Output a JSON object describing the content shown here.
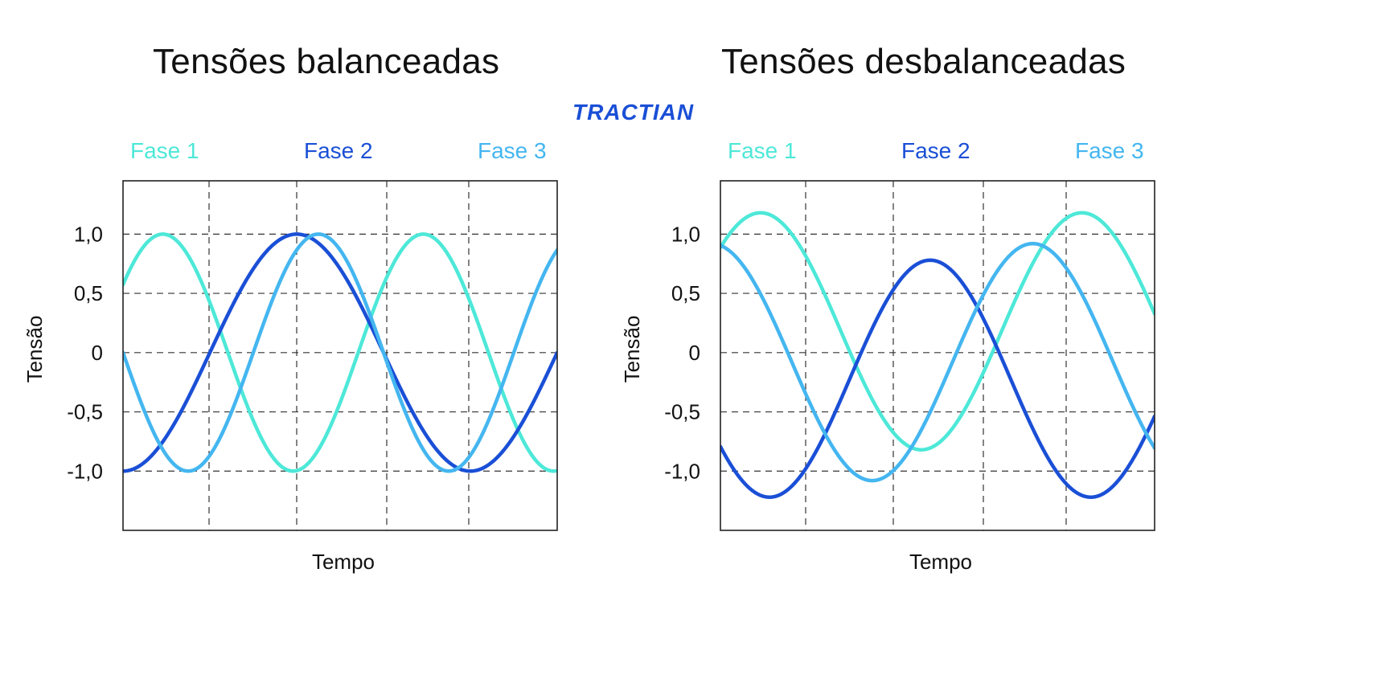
{
  "logo": {
    "text": "TRACTIAN",
    "color": "#1a4fd6"
  },
  "colors": {
    "fase1": "#4de8d8",
    "fase2": "#1a4fd6",
    "fase3": "#44b6f0",
    "grid": "#333333",
    "frame": "#222222"
  },
  "chart_data": [
    {
      "type": "line",
      "title": "Tensões balanceadas",
      "xlabel": "Tempo",
      "ylabel": "Tensão",
      "yticks": [
        1.0,
        0.5,
        0,
        -0.5,
        -1.0
      ],
      "ytick_labels": [
        "1,0",
        "0,5",
        "0",
        "-0,5",
        "-1,0"
      ],
      "ylim": [
        -1.5,
        1.45
      ],
      "xlim": [
        0,
        1
      ],
      "grid": true,
      "legend_position": "top",
      "series": [
        {
          "name": "Fase 1",
          "color": "#4de8d8",
          "amplitude": 1.0,
          "offset": 0.0,
          "period": 0.6,
          "phase_deg": 35
        },
        {
          "name": "Fase 2",
          "color": "#1a4fd6",
          "amplitude": 1.0,
          "offset": 0.0,
          "period": 0.8,
          "phase_deg": -90
        },
        {
          "name": "Fase 3",
          "color": "#44b6f0",
          "amplitude": 1.0,
          "offset": 0.0,
          "period": 0.6,
          "phase_deg": 180
        }
      ]
    },
    {
      "type": "line",
      "title": "Tensões desbalanceadas",
      "xlabel": "Tempo",
      "ylabel": "Tensão",
      "yticks": [
        1.0,
        0.5,
        0,
        -0.5,
        -1.0
      ],
      "ytick_labels": [
        "1,0",
        "0,5",
        "0",
        "-0,5",
        "-1,0"
      ],
      "ylim": [
        -1.5,
        1.45
      ],
      "xlim": [
        0,
        1
      ],
      "grid": true,
      "legend_position": "top",
      "series": [
        {
          "name": "Fase 1",
          "color": "#4de8d8",
          "amplitude": 1.0,
          "offset": 0.18,
          "period": 0.74,
          "phase_deg": 45
        },
        {
          "name": "Fase 2",
          "color": "#1a4fd6",
          "amplitude": 1.0,
          "offset": -0.22,
          "period": 0.74,
          "phase_deg": -145
        },
        {
          "name": "Fase 3",
          "color": "#44b6f0",
          "amplitude": 1.0,
          "offset": -0.08,
          "period": 0.74,
          "phase_deg": 100
        }
      ]
    }
  ]
}
